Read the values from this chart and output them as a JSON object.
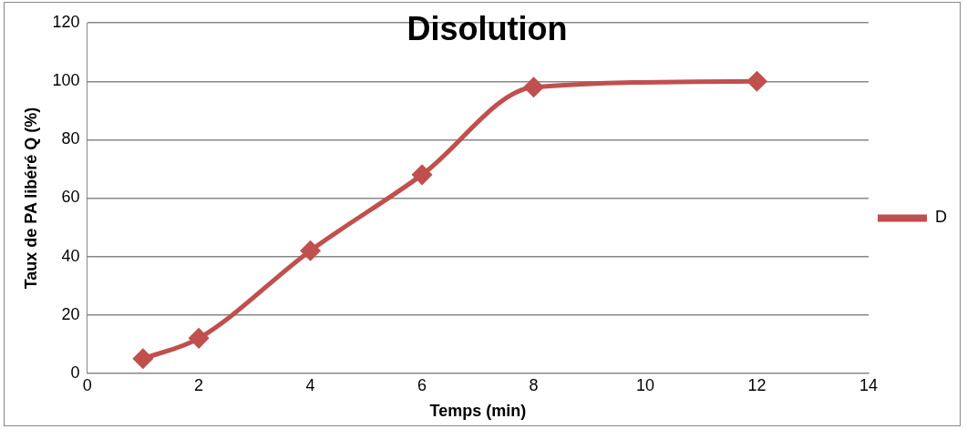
{
  "chart_data": {
    "type": "line",
    "title": "Disolution",
    "xlabel": "Temps (min)",
    "ylabel": "Taux de PA libéré Q (%)",
    "x": [
      1,
      2,
      4,
      6,
      8,
      12
    ],
    "series": [
      {
        "name": "D",
        "color": "#c0504d",
        "values": [
          5,
          12,
          42,
          68,
          98,
          100
        ]
      }
    ],
    "xlim": [
      0,
      14
    ],
    "xticks": [
      0,
      2,
      4,
      6,
      8,
      10,
      12,
      14
    ],
    "ylim": [
      0,
      120
    ],
    "yticks": [
      0,
      20,
      40,
      60,
      80,
      100,
      120
    ],
    "grid": "y",
    "legend": "right",
    "marker": "diamond",
    "line_style": "solid"
  }
}
